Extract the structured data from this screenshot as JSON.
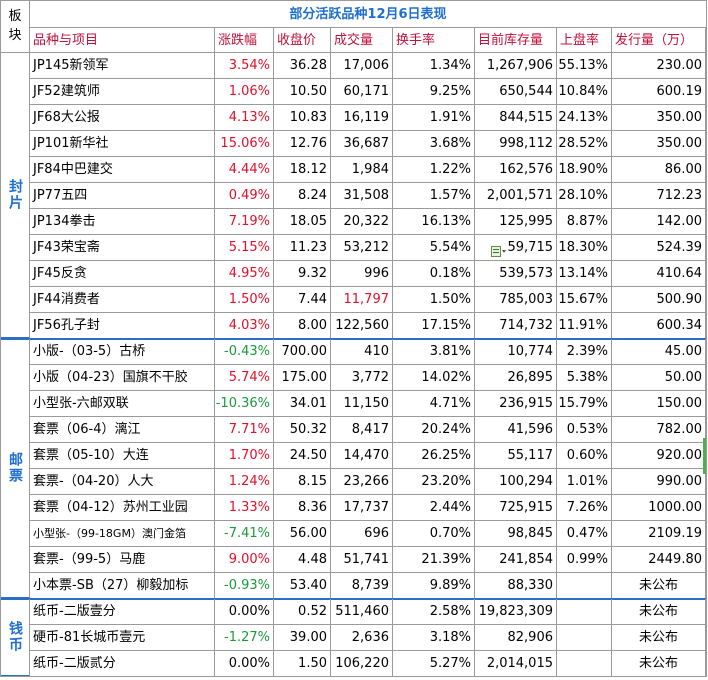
{
  "title": "部分活跃品种12月6日表现",
  "corner_label": [
    "板",
    "块"
  ],
  "headers": [
    "品种与项目",
    "涨跌幅",
    "收盘价",
    "成交量",
    "换手率",
    "目前库存量",
    "上盘率",
    "发行量（万）"
  ],
  "sectors": [
    {
      "label": "封片",
      "rows": [
        {
          "name": "JP145新领军",
          "change": "3.54%",
          "close": "36.28",
          "volume": "17,006",
          "turnover": "1.34%",
          "stock": "1,267,906",
          "rate": "55.13%",
          "issue": "230.00",
          "dir": "up"
        },
        {
          "name": "JF52建筑师",
          "change": "1.06%",
          "close": "10.50",
          "volume": "60,171",
          "turnover": "9.25%",
          "stock": "650,544",
          "rate": "10.84%",
          "issue": "600.19",
          "dir": "up"
        },
        {
          "name": "JF68大公报",
          "change": "4.13%",
          "close": "10.83",
          "volume": "16,119",
          "turnover": "1.91%",
          "stock": "844,515",
          "rate": "24.13%",
          "issue": "350.00",
          "dir": "up"
        },
        {
          "name": "JP101新华社",
          "change": "15.06%",
          "close": "12.76",
          "volume": "36,687",
          "turnover": "3.68%",
          "stock": "998,112",
          "rate": "28.52%",
          "issue": "350.00",
          "dir": "up"
        },
        {
          "name": "JF84中巴建交",
          "change": "4.44%",
          "close": "18.12",
          "volume": "1,984",
          "turnover": "1.22%",
          "stock": "162,576",
          "rate": "18.90%",
          "issue": "86.00",
          "dir": "up"
        },
        {
          "name": "JP77五四",
          "change": "0.49%",
          "close": "8.24",
          "volume": "31,508",
          "turnover": "1.57%",
          "stock": "2,001,571",
          "rate": "28.10%",
          "issue": "712.23",
          "dir": "up"
        },
        {
          "name": "JP134拳击",
          "change": "7.19%",
          "close": "18.05",
          "volume": "20,322",
          "turnover": "16.13%",
          "stock": "125,995",
          "rate": "8.87%",
          "issue": "142.00",
          "dir": "up"
        },
        {
          "name": "JF43荣宝斋",
          "change": "5.15%",
          "close": "11.23",
          "volume": "53,212",
          "turnover": "5.54%",
          "stock": "59,715",
          "rate": "18.30%",
          "issue": "524.39",
          "dir": "up",
          "paste_icon": true
        },
        {
          "name": "JF45反贪",
          "change": "4.95%",
          "close": "9.32",
          "volume": "996",
          "turnover": "0.18%",
          "stock": "539,573",
          "rate": "13.14%",
          "issue": "410.64",
          "dir": "up"
        },
        {
          "name": "JF44消费者",
          "change": "1.50%",
          "close": "7.44",
          "volume": "11,797",
          "turnover": "1.50%",
          "stock": "785,003",
          "rate": "15.67%",
          "issue": "500.90",
          "dir": "up",
          "volume_red": true
        },
        {
          "name": "JF56孔子封",
          "change": "4.03%",
          "close": "8.00",
          "volume": "122,560",
          "turnover": "17.15%",
          "stock": "714,732",
          "rate": "11.91%",
          "issue": "600.34",
          "dir": "up"
        }
      ]
    },
    {
      "label": "邮票",
      "rows": [
        {
          "name": "小版-（03-5）古桥",
          "change": "-0.43%",
          "close": "700.00",
          "volume": "410",
          "turnover": "3.81%",
          "stock": "10,774",
          "rate": "2.39%",
          "issue": "45.00",
          "dir": "down"
        },
        {
          "name": "小版（04-23）国旗不干胶",
          "change": "5.74%",
          "close": "175.00",
          "volume": "3,772",
          "turnover": "14.02%",
          "stock": "26,895",
          "rate": "5.38%",
          "issue": "50.00",
          "dir": "up"
        },
        {
          "name": "小型张-六邮双联",
          "change": "-10.36%",
          "close": "34.01",
          "volume": "11,150",
          "turnover": "4.71%",
          "stock": "236,915",
          "rate": "15.79%",
          "issue": "150.00",
          "dir": "down"
        },
        {
          "name": "套票（06-4）漓江",
          "change": "7.71%",
          "close": "50.32",
          "volume": "8,417",
          "turnover": "20.24%",
          "stock": "41,596",
          "rate": "0.53%",
          "issue": "782.00",
          "dir": "up"
        },
        {
          "name": "套票（05-10）大连",
          "change": "1.70%",
          "close": "24.50",
          "volume": "14,470",
          "turnover": "26.25%",
          "stock": "55,117",
          "rate": "0.60%",
          "issue": "920.00",
          "dir": "up"
        },
        {
          "name": "套票-（04-20）人大",
          "change": "1.24%",
          "close": "8.15",
          "volume": "23,266",
          "turnover": "23.20%",
          "stock": "100,294",
          "rate": "1.01%",
          "issue": "990.00",
          "dir": "up"
        },
        {
          "name": "套票（04-12）苏州工业园",
          "change": "1.33%",
          "close": "8.36",
          "volume": "17,737",
          "turnover": "2.44%",
          "stock": "725,915",
          "rate": "7.26%",
          "issue": "1000.00",
          "dir": "up"
        },
        {
          "name": "小型张-（99-18GM）澳门金箔",
          "change": "-7.41%",
          "close": "56.00",
          "volume": "696",
          "turnover": "0.70%",
          "stock": "98,845",
          "rate": "0.47%",
          "issue": "2109.19",
          "dir": "down",
          "small_name": true
        },
        {
          "name": "套票-（99-5）马鹿",
          "change": "9.00%",
          "close": "4.48",
          "volume": "51,741",
          "turnover": "21.39%",
          "stock": "241,854",
          "rate": "0.99%",
          "issue": "2449.80",
          "dir": "up"
        },
        {
          "name": "小本票-SB（27）柳毅加标",
          "change": "-0.93%",
          "close": "53.40",
          "volume": "8,739",
          "turnover": "9.89%",
          "stock": "88,330",
          "rate": "",
          "issue": "未公布",
          "dir": "down",
          "issue_center": true
        }
      ]
    },
    {
      "label": "钱币",
      "rows": [
        {
          "name": "纸币-二版壹分",
          "change": "0.00%",
          "close": "0.52",
          "volume": "511,460",
          "turnover": "2.58%",
          "stock": "19,823,309",
          "rate": "",
          "issue": "未公布",
          "dir": "flat",
          "issue_center": true
        },
        {
          "name": "硬币-81长城币壹元",
          "change": "-1.27%",
          "close": "39.00",
          "volume": "2,636",
          "turnover": "3.18%",
          "stock": "82,906",
          "rate": "",
          "issue": "未公布",
          "dir": "down",
          "issue_center": true
        },
        {
          "name": "纸币-二版贰分",
          "change": "0.00%",
          "close": "1.50",
          "volume": "106,220",
          "turnover": "5.27%",
          "stock": "2,014,015",
          "rate": "",
          "issue": "未公布",
          "dir": "flat",
          "issue_center": true
        }
      ]
    }
  ],
  "colors": {
    "up": "#e0102a",
    "down": "#1a9a3a",
    "title": "#1e6fd0",
    "header": "#c0103a",
    "separator": "#2a6fc4"
  }
}
